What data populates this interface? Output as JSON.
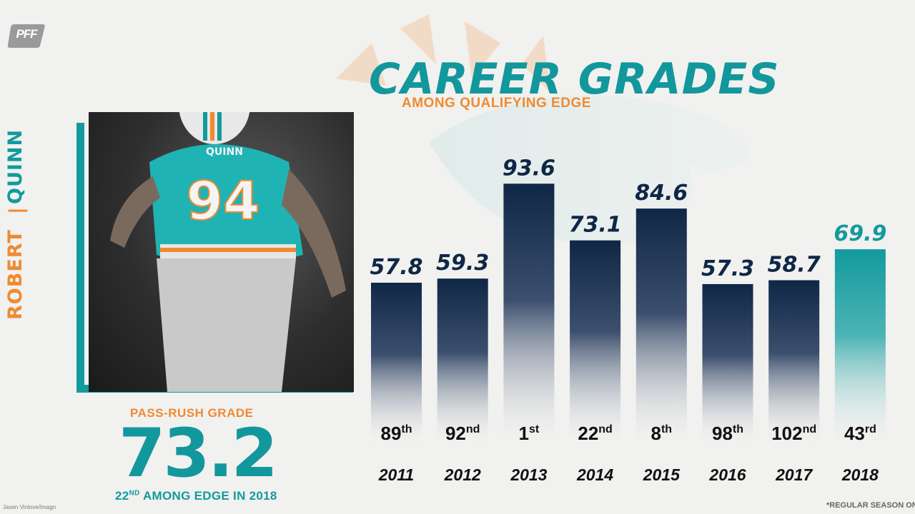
{
  "brand": {
    "logo_text": "PFF"
  },
  "header": {
    "title": "CAREER GRADES",
    "subtitle": "AMONG QUALIFYING EDGE"
  },
  "player": {
    "first_name": "ROBERT",
    "last_name": "QUINN",
    "jersey_number": "94",
    "jersey_name": "QUINN"
  },
  "summary": {
    "label": "PASS-RUSH GRADE",
    "value": "73.2",
    "rank_number": "22",
    "rank_suffix": "ND",
    "rank_text": " AMONG EDGE IN 2018"
  },
  "credit": "Jasen Vinlove/Imagn",
  "footnote": "*REGULAR SEASON ONLY",
  "colors": {
    "teal": "#139a9d",
    "orange": "#f08a31",
    "navy": "#0f2746"
  },
  "chart_data": {
    "type": "bar",
    "title": "CAREER GRADES",
    "subtitle": "AMONG QUALIFYING EDGE",
    "categories": [
      "2011",
      "2012",
      "2013",
      "2014",
      "2015",
      "2016",
      "2017",
      "2018"
    ],
    "values": [
      57.8,
      59.3,
      93.6,
      73.1,
      84.6,
      57.3,
      58.7,
      69.9
    ],
    "ranks": [
      {
        "num": "89",
        "suffix": "th"
      },
      {
        "num": "92",
        "suffix": "nd"
      },
      {
        "num": "1",
        "suffix": "st"
      },
      {
        "num": "22",
        "suffix": "nd"
      },
      {
        "num": "8",
        "suffix": "th"
      },
      {
        "num": "98",
        "suffix": "th"
      },
      {
        "num": "102",
        "suffix": "nd"
      },
      {
        "num": "43",
        "suffix": "rd"
      }
    ],
    "highlight_index": 7,
    "grid": false,
    "legend": "none"
  }
}
